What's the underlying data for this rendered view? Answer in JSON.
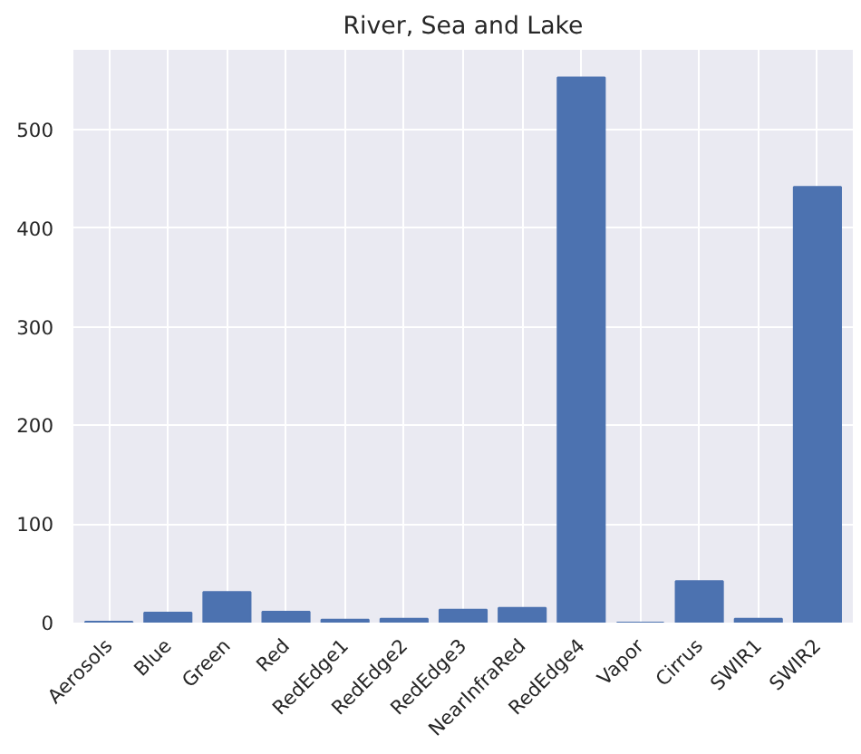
{
  "chart_data": {
    "type": "bar",
    "title": "River, Sea and Lake",
    "categories": [
      "Aerosols",
      "Blue",
      "Green",
      "Red",
      "RedEdge1",
      "RedEdge2",
      "RedEdge3",
      "NearInfraRed",
      "RedEdge4",
      "Vapor",
      "Cirrus",
      "SWIR1",
      "SWIR2"
    ],
    "values": [
      1,
      10,
      31,
      11,
      3,
      4,
      13,
      15,
      553,
      0,
      42,
      4,
      442
    ],
    "color": "#4c72b0",
    "ylim": [
      0,
      581
    ],
    "yticks": [
      0,
      100,
      200,
      300,
      400,
      500
    ],
    "grid": true
  }
}
